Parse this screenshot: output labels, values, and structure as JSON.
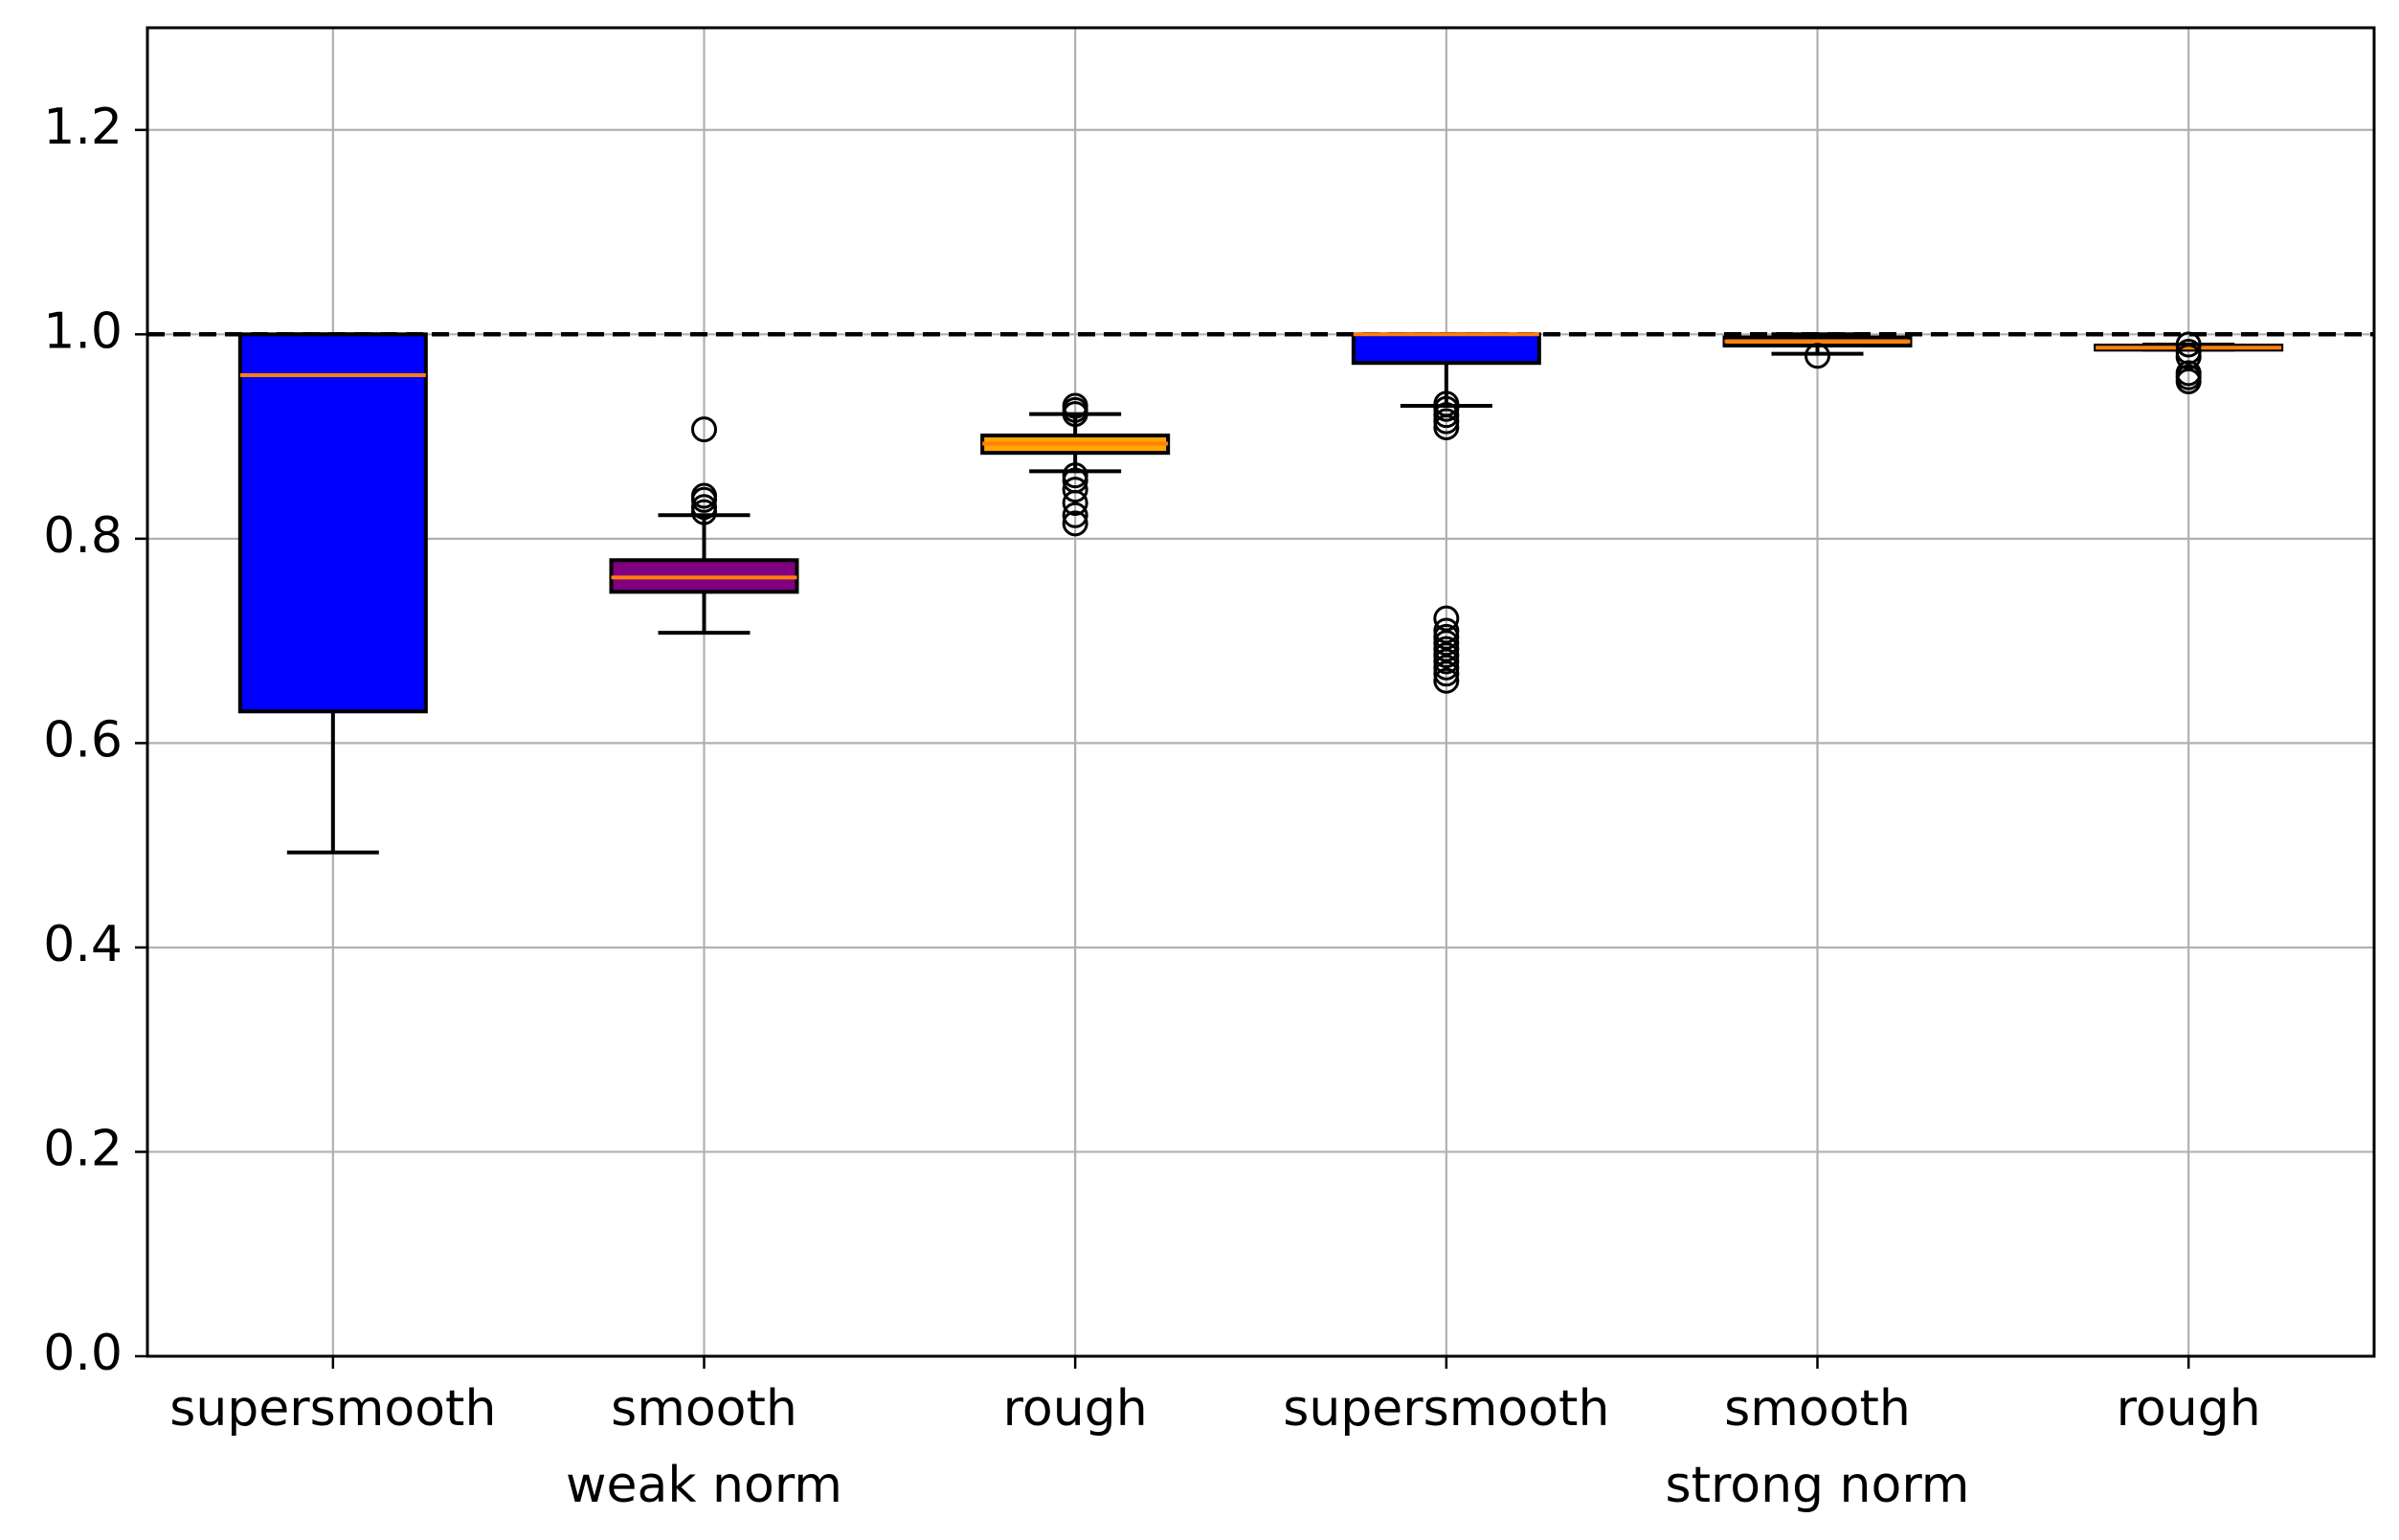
{
  "chart_data": {
    "type": "box",
    "ylim": [
      0,
      1.3
    ],
    "yticks": [
      0.0,
      0.2,
      0.4,
      0.6,
      0.8,
      1.0,
      1.2
    ],
    "ytick_labels": [
      "0.0",
      "0.2",
      "0.4",
      "0.6",
      "0.8",
      "1.0",
      "1.2"
    ],
    "grid": true,
    "reference_line": {
      "y": 1.0,
      "style": "dashed",
      "color": "#000000"
    },
    "categories": [
      "supersmooth",
      "smooth",
      "rough",
      "supersmooth",
      "smooth",
      "rough"
    ],
    "group_labels": [
      {
        "label": "weak norm",
        "category_index": 1
      },
      {
        "label": "strong norm",
        "category_index": 4
      }
    ],
    "boxes": [
      {
        "category": "supersmooth",
        "whisker_low": 0.493,
        "q1": 0.631,
        "median": 0.96,
        "q3": 1.0,
        "whisker_high": 1.0,
        "fill": "#0000ff",
        "outliers": []
      },
      {
        "category": "smooth",
        "whisker_low": 0.708,
        "q1": 0.748,
        "median": 0.762,
        "q3": 0.779,
        "whisker_high": 0.823,
        "fill": "#800080",
        "outliers": [
          0.826,
          0.831,
          0.838,
          0.842,
          0.907
        ]
      },
      {
        "category": "rough",
        "whisker_low": 0.866,
        "q1": 0.884,
        "median": 0.893,
        "q3": 0.901,
        "whisker_high": 0.922,
        "fill": "#ffa500",
        "outliers": [
          0.815,
          0.823,
          0.835,
          0.848,
          0.857,
          0.862,
          0.922,
          0.926,
          0.93
        ]
      },
      {
        "category": "supersmooth",
        "whisker_low": 0.93,
        "q1": 0.972,
        "median": 1.0,
        "q3": 1.0,
        "whisker_high": 1.0,
        "fill": "#0000ff",
        "outliers": [
          0.661,
          0.668,
          0.674,
          0.68,
          0.686,
          0.692,
          0.698,
          0.704,
          0.71,
          0.722,
          0.909,
          0.915,
          0.921,
          0.927,
          0.932
        ]
      },
      {
        "category": "smooth",
        "whisker_low": 0.981,
        "q1": 0.989,
        "median": 0.993,
        "q3": 0.997,
        "whisker_high": 1.0,
        "fill": "#ffa500",
        "outliers": [
          0.979
        ]
      },
      {
        "category": "rough",
        "whisker_low": 0.985,
        "q1": 0.985,
        "median": 0.987,
        "q3": 0.989,
        "whisker_high": 0.99,
        "fill": "#ffa500",
        "outliers": [
          0.954,
          0.958,
          0.962,
          0.978,
          0.983,
          0.99
        ]
      }
    ],
    "colors": {
      "median": "#ff7f0e",
      "grid": "#b0b0b0",
      "axis": "#000000"
    }
  }
}
